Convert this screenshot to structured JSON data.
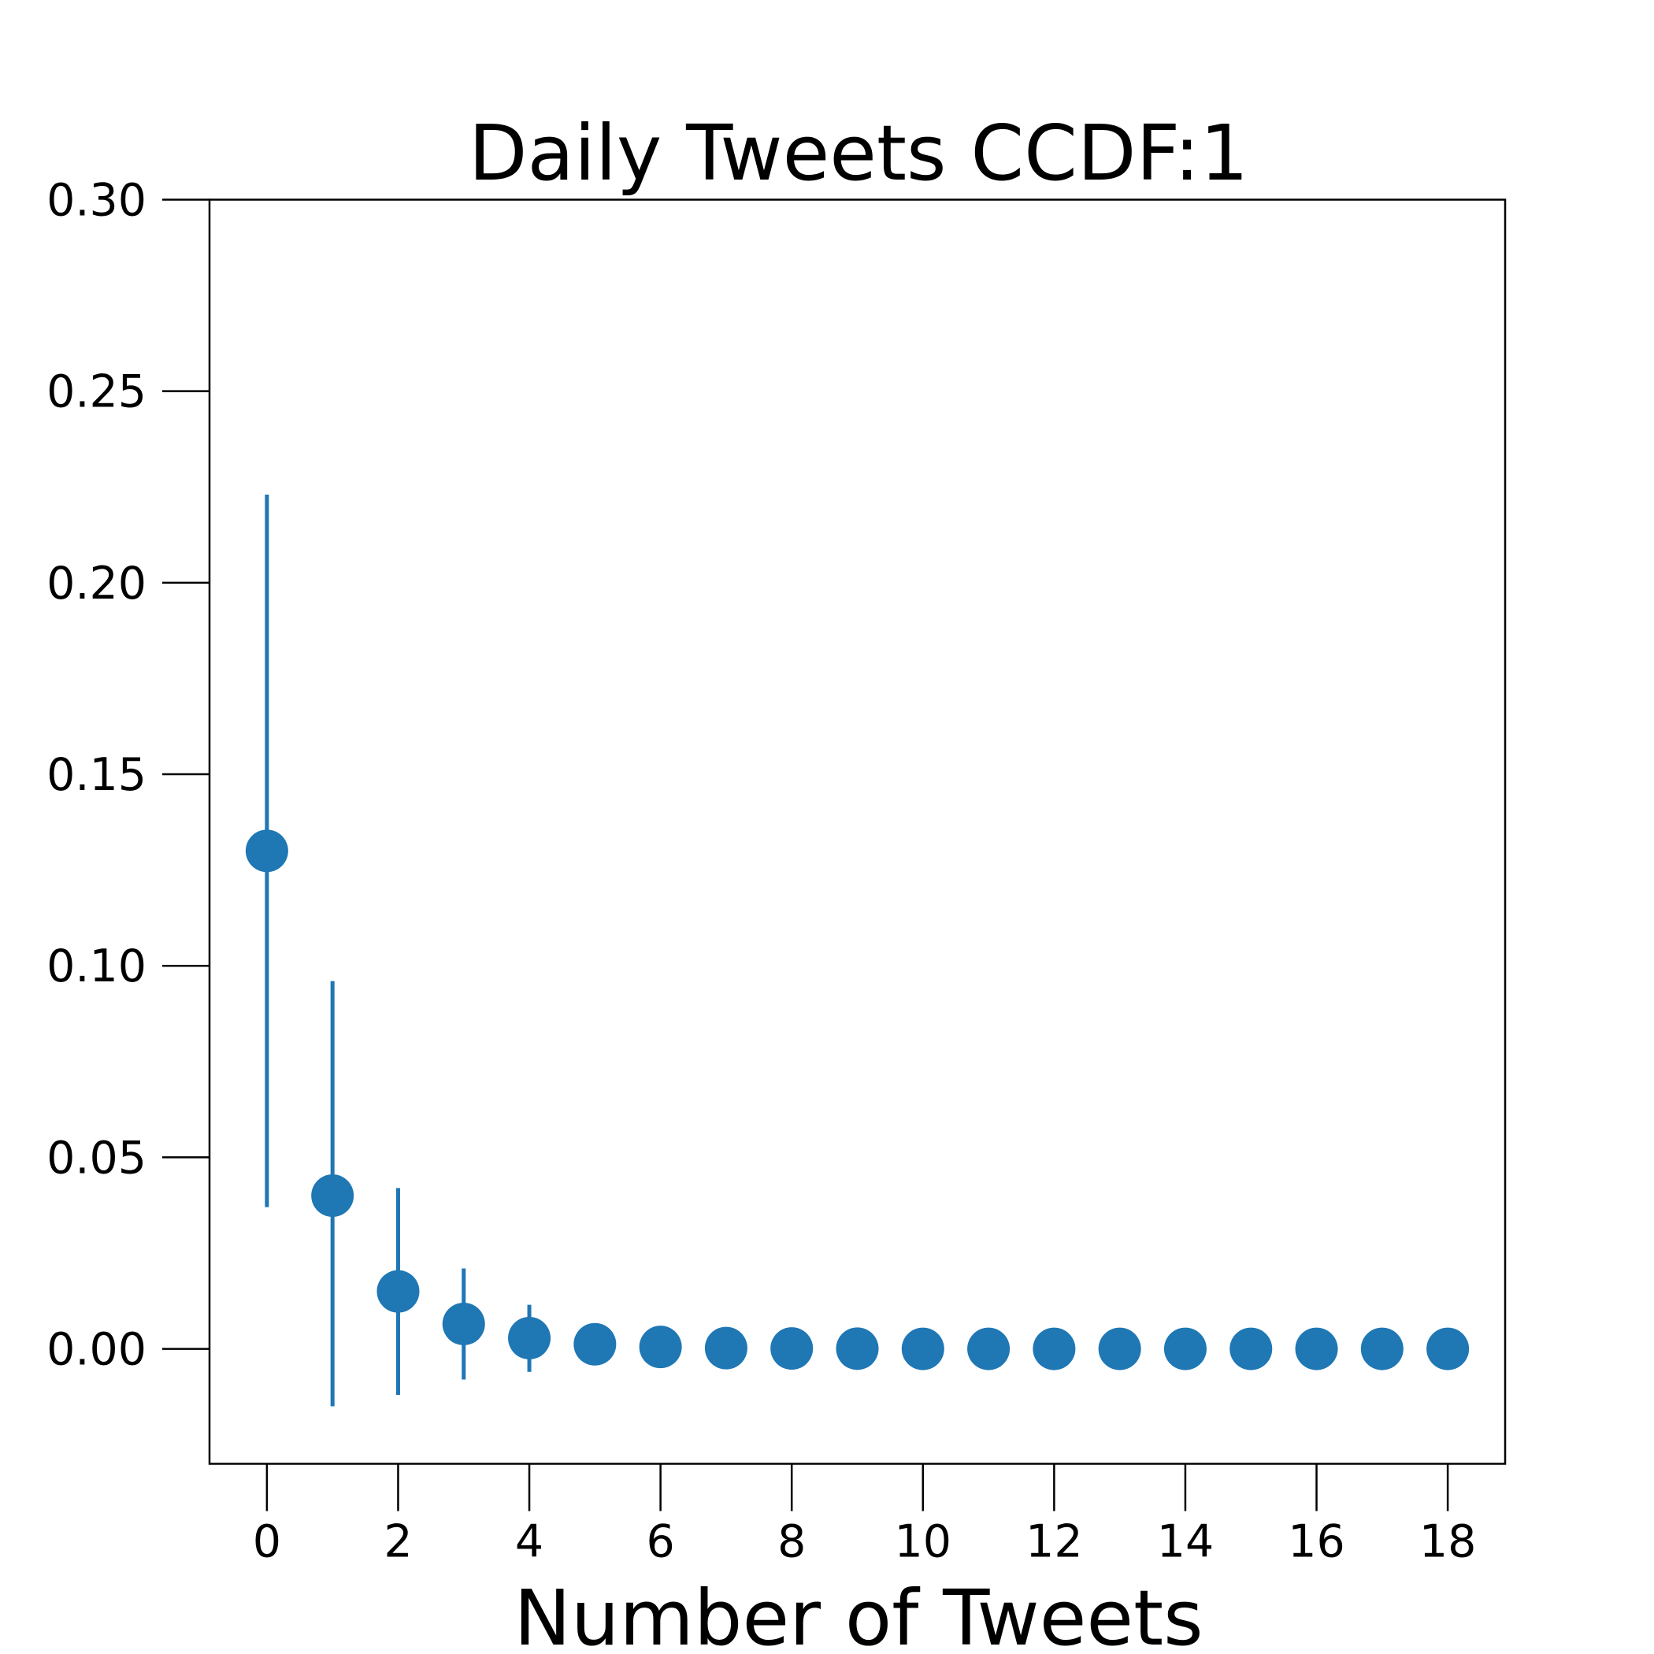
{
  "chart_data": {
    "type": "scatter",
    "title": "Daily Tweets CCDF:1",
    "xlabel": "Number of Tweets",
    "ylabel": "",
    "xlim": [
      -0.875,
      18.875
    ],
    "ylim": [
      -0.03,
      0.3
    ],
    "x_ticks": [
      0,
      2,
      4,
      6,
      8,
      10,
      12,
      14,
      16,
      18
    ],
    "x_tick_labels": [
      "0",
      "2",
      "4",
      "6",
      "8",
      "10",
      "12",
      "14",
      "16",
      "18"
    ],
    "y_ticks": [
      0.0,
      0.05,
      0.1,
      0.15,
      0.2,
      0.25,
      0.3
    ],
    "y_tick_labels": [
      "0.00",
      "0.05",
      "0.10",
      "0.15",
      "0.20",
      "0.25",
      "0.30"
    ],
    "grid": false,
    "color": "#1f77b4",
    "series": [
      {
        "x": [
          0,
          1,
          2,
          3,
          4,
          5,
          6,
          7,
          8,
          9,
          10,
          11,
          12,
          13,
          14,
          15,
          16,
          17,
          18
        ],
        "y": [
          0.13,
          0.04,
          0.015,
          0.0065,
          0.0028,
          0.0012,
          0.0005,
          0.0002,
          0.0001,
          5e-05,
          0.0,
          0.0,
          0.0,
          0.0,
          0.0,
          0.0,
          0.0,
          0.0,
          0.0
        ],
        "error_low": [
          0.037,
          -0.015,
          -0.012,
          -0.008,
          -0.006,
          0.0012,
          0.0005,
          0.0002,
          0.0001,
          5e-05,
          0.0,
          0.0,
          0.0,
          0.0,
          0.0,
          0.0,
          0.0,
          0.0,
          0.0
        ],
        "error_high": [
          0.223,
          0.096,
          0.042,
          0.021,
          0.0115,
          0.0012,
          0.0005,
          0.0002,
          0.0001,
          5e-05,
          0.0,
          0.0,
          0.0,
          0.0,
          0.0,
          0.0,
          0.0,
          0.0,
          0.0
        ]
      }
    ]
  }
}
